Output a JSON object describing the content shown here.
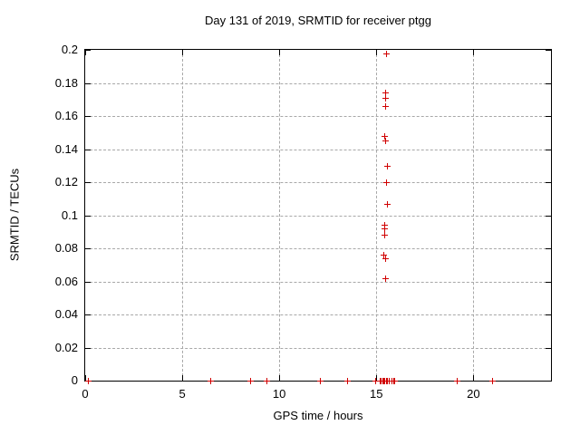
{
  "chart_data": {
    "type": "scatter",
    "title": "Day 131 of 2019, SRMTID for receiver ptgg",
    "xlabel": "GPS time / hours",
    "ylabel": "SRMTID / TECUs",
    "xlim": [
      0,
      24
    ],
    "ylim": [
      0,
      0.2
    ],
    "x_ticks": [
      0,
      5,
      10,
      15,
      20
    ],
    "x_tick_labels": [
      "0",
      "5",
      "10",
      "15",
      "20"
    ],
    "y_ticks": [
      0,
      0.02,
      0.04,
      0.06,
      0.08,
      0.1,
      0.12,
      0.14,
      0.16,
      0.18,
      0.2
    ],
    "y_tick_labels": [
      "0",
      "0.02",
      "0.04",
      "0.06",
      "0.08",
      "0.1",
      "0.12",
      "0.14",
      "0.16",
      "0.18",
      "0.2"
    ],
    "grid": true,
    "legend": "none",
    "marker": "plus",
    "marker_color": "#d00000",
    "series": [
      {
        "name": "SRMTID",
        "points": [
          [
            0.12,
            0
          ],
          [
            6.45,
            0
          ],
          [
            8.48,
            0
          ],
          [
            9.35,
            0
          ],
          [
            12.08,
            0
          ],
          [
            13.5,
            0
          ],
          [
            14.93,
            0
          ],
          [
            15.18,
            0
          ],
          [
            15.23,
            0
          ],
          [
            15.3,
            0
          ],
          [
            15.36,
            0
          ],
          [
            15.42,
            0
          ],
          [
            15.48,
            0
          ],
          [
            15.56,
            0
          ],
          [
            15.62,
            0
          ],
          [
            15.8,
            0
          ],
          [
            15.86,
            0
          ],
          [
            15.93,
            0
          ],
          [
            19.15,
            0
          ],
          [
            20.95,
            0
          ],
          [
            15.49,
            0.198
          ],
          [
            15.44,
            0.174
          ],
          [
            15.44,
            0.171
          ],
          [
            15.45,
            0.166
          ],
          [
            15.43,
            0.148
          ],
          [
            15.44,
            0.145
          ],
          [
            15.53,
            0.13
          ],
          [
            15.5,
            0.12
          ],
          [
            15.53,
            0.107
          ],
          [
            15.4,
            0.0945
          ],
          [
            15.42,
            0.092
          ],
          [
            15.43,
            0.088
          ],
          [
            15.38,
            0.076
          ],
          [
            15.46,
            0.074
          ],
          [
            15.45,
            0.062
          ]
        ]
      }
    ]
  }
}
